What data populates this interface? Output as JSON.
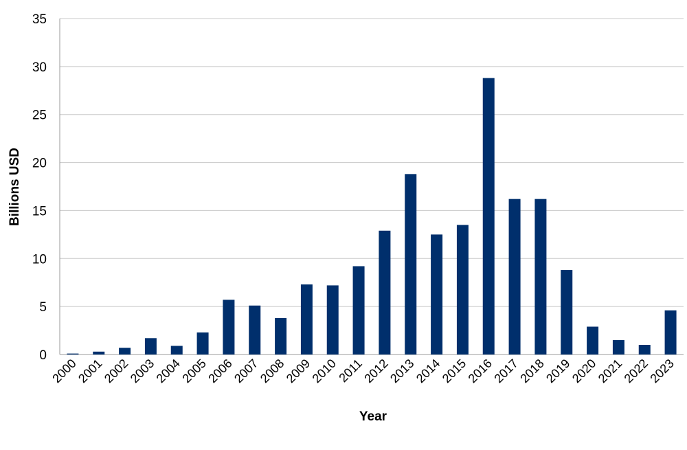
{
  "chart_data": {
    "type": "bar",
    "title": "",
    "xlabel": "Year",
    "ylabel": "Billions USD",
    "ylim": [
      0,
      35
    ],
    "yticks": [
      0,
      5,
      10,
      15,
      20,
      25,
      30,
      35
    ],
    "grid": true,
    "bar_color": "#002F6C",
    "categories": [
      "2000",
      "2001",
      "2002",
      "2003",
      "2004",
      "2005",
      "2006",
      "2007",
      "2008",
      "2009",
      "2010",
      "2011",
      "2012",
      "2013",
      "2014",
      "2015",
      "2016",
      "2017",
      "2018",
      "2019",
      "2020",
      "2021",
      "2022",
      "2023"
    ],
    "values": [
      0.1,
      0.3,
      0.7,
      1.7,
      0.9,
      2.3,
      5.7,
      5.1,
      3.8,
      7.3,
      7.2,
      9.2,
      12.9,
      18.8,
      12.5,
      13.5,
      28.8,
      16.2,
      16.2,
      8.8,
      2.9,
      1.5,
      1.0,
      4.6
    ]
  }
}
